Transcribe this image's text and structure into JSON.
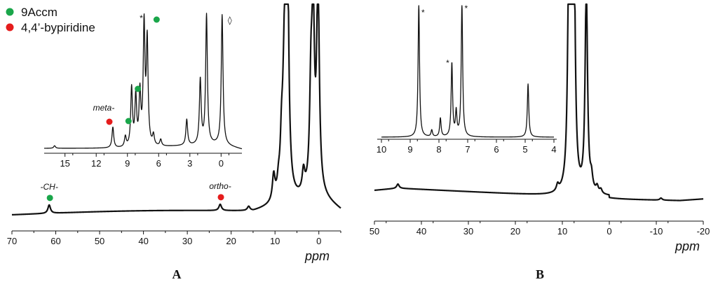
{
  "colors": {
    "green": "#1aa64a",
    "red": "#e51c1c"
  },
  "legend": [
    {
      "label": "9Accm",
      "color": "#1aa64a"
    },
    {
      "label": "4,4’-bypiridine",
      "color": "#e51c1c"
    }
  ],
  "chart_data": [
    {
      "panel": "A",
      "type": "line",
      "title": "",
      "xlabel": "ppm",
      "xlim": [
        70,
        -5
      ],
      "x_reversed": true,
      "xticks": [
        "70",
        "60",
        "50",
        "40",
        "30",
        "20",
        "10",
        "0"
      ],
      "annotations": [
        {
          "text": "-CH-",
          "x": 61.5,
          "marker": "green"
        },
        {
          "text": "ortho-",
          "x": 22.5,
          "marker": "red"
        }
      ],
      "peaks": [
        {
          "ppm": 61.5,
          "height": 0.04
        },
        {
          "ppm": 22.5,
          "height": 0.03
        },
        {
          "ppm": 16.0,
          "height": 0.02
        },
        {
          "ppm": 10.3,
          "height": 0.12
        },
        {
          "ppm": 9.2,
          "height": 0.06
        },
        {
          "ppm": 8.5,
          "height": 0.22
        },
        {
          "ppm": 8.0,
          "height": 0.24
        },
        {
          "ppm": 7.5,
          "height": 1.0
        },
        {
          "ppm": 7.2,
          "height": 1.0
        },
        {
          "ppm": 3.5,
          "height": 0.1
        },
        {
          "ppm": 1.8,
          "height": 0.45
        },
        {
          "ppm": 1.3,
          "height": 0.8
        },
        {
          "ppm": 0.2,
          "height": 1.0
        }
      ],
      "inset": {
        "xlim": [
          17,
          -2
        ],
        "xticks": [
          "15",
          "12",
          "9",
          "6",
          "3",
          "0"
        ],
        "annotations": [
          {
            "text": "meta-",
            "x": 10.6,
            "marker": "red"
          },
          {
            "text": "",
            "x": 9.3,
            "marker": "green"
          },
          {
            "text": "",
            "x": 8.4,
            "marker": "green"
          },
          {
            "text": "",
            "x": 6.6,
            "marker": "green"
          },
          {
            "text": "*",
            "x": 7.4
          },
          {
            "text": "◊",
            "x": -0.3
          }
        ],
        "peaks": [
          {
            "ppm": 16.0,
            "height": 0.02
          },
          {
            "ppm": 10.4,
            "height": 0.16
          },
          {
            "ppm": 9.2,
            "height": 0.08
          },
          {
            "ppm": 8.6,
            "height": 0.45
          },
          {
            "ppm": 8.2,
            "height": 0.38
          },
          {
            "ppm": 7.8,
            "height": 0.4
          },
          {
            "ppm": 7.4,
            "height": 0.92
          },
          {
            "ppm": 7.1,
            "height": 0.8
          },
          {
            "ppm": 6.5,
            "height": 0.08
          },
          {
            "ppm": 5.8,
            "height": 0.05
          },
          {
            "ppm": 3.3,
            "height": 0.2
          },
          {
            "ppm": 2.0,
            "height": 0.5
          },
          {
            "ppm": 1.4,
            "height": 1.0
          },
          {
            "ppm": -0.1,
            "height": 1.0
          }
        ]
      }
    },
    {
      "panel": "B",
      "type": "line",
      "title": "",
      "xlabel": "ppm",
      "xlim": [
        50,
        -20
      ],
      "x_reversed": true,
      "xticks": [
        "50",
        "40",
        "30",
        "20",
        "10",
        "0",
        "-10",
        "-20"
      ],
      "peaks": [
        {
          "ppm": 45.0,
          "height": 0.02
        },
        {
          "ppm": 11.0,
          "height": 0.03
        },
        {
          "ppm": 8.6,
          "height": 1.0
        },
        {
          "ppm": 8.1,
          "height": 1.0
        },
        {
          "ppm": 7.5,
          "height": 1.0
        },
        {
          "ppm": 4.9,
          "height": 1.0
        },
        {
          "ppm": 3.8,
          "height": 0.06
        },
        {
          "ppm": 2.6,
          "height": 0.03
        },
        {
          "ppm": 1.8,
          "height": 0.02
        },
        {
          "ppm": -11.0,
          "height": 0.01
        }
      ],
      "inset": {
        "xlim": [
          10,
          4
        ],
        "xticks": [
          "10",
          "9",
          "8",
          "7",
          "6",
          "5",
          "4"
        ],
        "annotations": [
          {
            "text": "*",
            "x": 8.7
          },
          {
            "text": "*",
            "x": 7.6
          },
          {
            "text": "*",
            "x": 7.2
          }
        ],
        "peaks": [
          {
            "ppm": 8.7,
            "height": 1.0
          },
          {
            "ppm": 8.25,
            "height": 0.05
          },
          {
            "ppm": 7.95,
            "height": 0.14
          },
          {
            "ppm": 7.55,
            "height": 0.55
          },
          {
            "ppm": 7.4,
            "height": 0.18
          },
          {
            "ppm": 7.2,
            "height": 1.0
          },
          {
            "ppm": 4.9,
            "height": 0.4
          }
        ]
      }
    }
  ]
}
